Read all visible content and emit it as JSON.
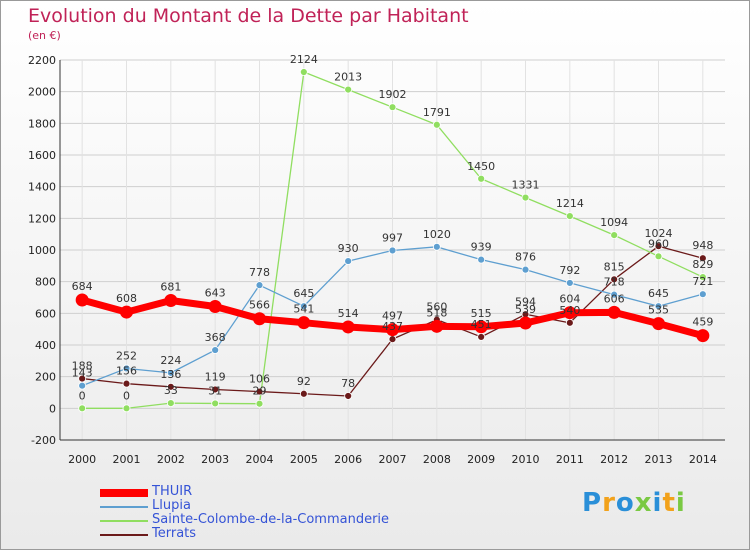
{
  "header": {
    "title": "Evolution du Montant de la Dette par Habitant",
    "subtitle": "(en €)"
  },
  "logo": {
    "text": "Proxiti"
  },
  "chart_data": {
    "type": "line",
    "title": "Evolution du Montant de la Dette par Habitant",
    "ylabel": "(en €)",
    "ylim": [
      -200,
      2200
    ],
    "yticks": [
      -200,
      0,
      200,
      400,
      600,
      800,
      1000,
      1200,
      1400,
      1600,
      1800,
      2000,
      2200
    ],
    "categories": [
      "2000",
      "2001",
      "2002",
      "2003",
      "2004",
      "2005",
      "2006",
      "2007",
      "2008",
      "2009",
      "2010",
      "2011",
      "2012",
      "2013",
      "2014"
    ],
    "legend_position": "bottom-left",
    "grid": true,
    "series": [
      {
        "name": "THUIR",
        "color": "#ff0000",
        "values": [
          684,
          608,
          681,
          643,
          566,
          541,
          514,
          497,
          518,
          515,
          539,
          604,
          606,
          535,
          459
        ]
      },
      {
        "name": "Llupia",
        "color": "#5e9fd0",
        "values": [
          143,
          252,
          224,
          368,
          778,
          645,
          930,
          997,
          1020,
          939,
          876,
          792,
          718,
          645,
          721
        ]
      },
      {
        "name": "Sainte-Colombe-de-la-Commanderie",
        "color": "#90de60",
        "values": [
          0,
          0,
          33,
          31,
          29,
          2124,
          2013,
          1902,
          1791,
          1450,
          1331,
          1214,
          1094,
          960,
          829
        ]
      },
      {
        "name": "Terrats",
        "color": "#6b1a1a",
        "values": [
          188,
          156,
          136,
          119,
          106,
          92,
          78,
          437,
          560,
          451,
          594,
          540,
          815,
          1024,
          948
        ]
      }
    ]
  }
}
